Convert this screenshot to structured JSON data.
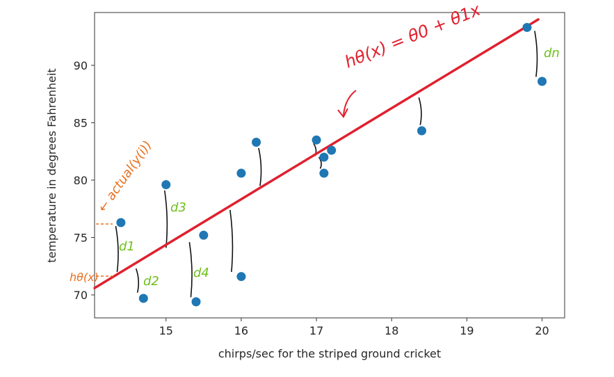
{
  "chart_data": {
    "type": "scatter",
    "title": "",
    "xlabel": "chirps/sec for the striped ground cricket",
    "ylabel": "temperature in degrees Fahrenheit",
    "xlim": [
      14.05,
      20.3
    ],
    "ylim": [
      68.0,
      94.6
    ],
    "xticks": [
      15,
      16,
      17,
      18,
      19,
      20
    ],
    "yticks": [
      70,
      75,
      80,
      85,
      90
    ],
    "grid": false,
    "point_color": "#1f77b4",
    "series": [
      {
        "x": [
          14.4,
          14.7,
          15.0,
          15.4,
          15.5,
          16.0,
          16.0,
          16.2,
          17.0,
          17.1,
          17.1,
          17.2,
          18.4,
          19.8,
          20.0
        ],
        "y": [
          76.3,
          69.7,
          79.6,
          69.4,
          75.2,
          71.6,
          80.6,
          83.3,
          83.5,
          82.0,
          80.6,
          82.6,
          84.3,
          93.3,
          88.6
        ]
      }
    ],
    "regression_line": {
      "x": [
        14.05,
        19.95
      ],
      "y": [
        70.6,
        94.0
      ],
      "color": "#e0202e",
      "label": "hθ(x) = θ0 + θ1x"
    },
    "residuals": [
      {
        "x": 14.35,
        "y_from": 76.0,
        "y_to": 72.0
      },
      {
        "x": 14.62,
        "y_from": 72.3,
        "y_to": 70.2
      },
      {
        "x": 15.0,
        "y_from": 79.1,
        "y_to": 74.1
      },
      {
        "x": 15.33,
        "y_from": 74.6,
        "y_to": 69.8
      },
      {
        "x": 15.87,
        "y_from": 77.4,
        "y_to": 72.0
      },
      {
        "x": 16.25,
        "y_from": 82.8,
        "y_to": 79.5
      },
      {
        "x": 16.98,
        "y_from": 83.2,
        "y_to": 82.1
      },
      {
        "x": 17.05,
        "y_from": 82.0,
        "y_to": 81.0
      },
      {
        "x": 18.38,
        "y_from": 87.2,
        "y_to": 84.8
      },
      {
        "x": 19.92,
        "y_from": 93.0,
        "y_to": 89.0
      }
    ],
    "annotations": {
      "actual": "← actual(y(i))",
      "predicted": "hθ(x)",
      "d1": "d1",
      "d2": "d2",
      "d3": "d3",
      "d4": "d4",
      "dn": "dn",
      "annotation_color": "#e8701e",
      "d_color": "#6fbf1a"
    }
  }
}
